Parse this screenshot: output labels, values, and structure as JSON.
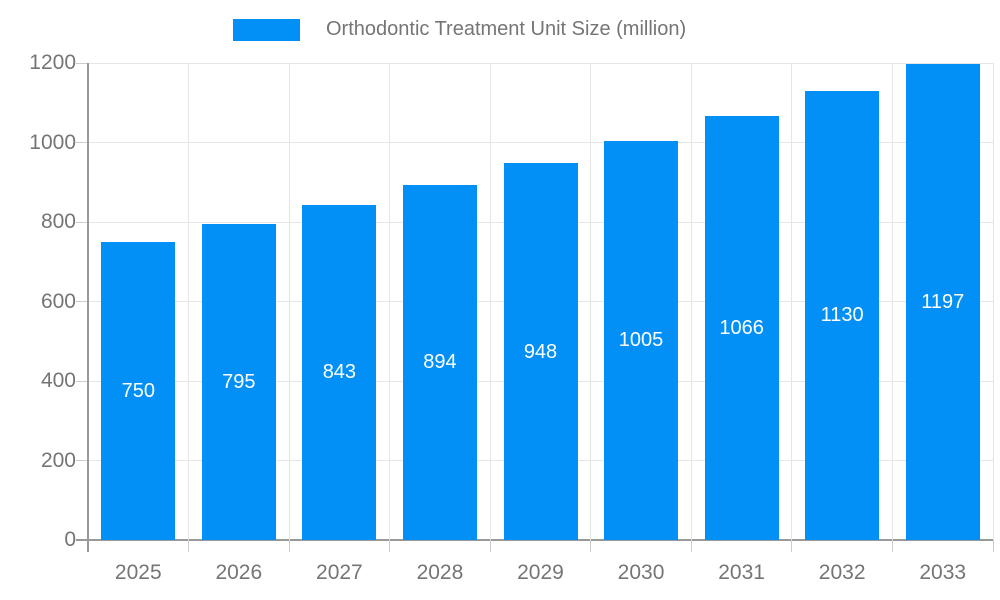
{
  "legend": {
    "label": "Orthodontic Treatment Unit Size (million)"
  },
  "colors": {
    "bar": "#0290f7",
    "axis_text": "#757575",
    "grid": "#e6e6e6",
    "axis_line": "#999999",
    "tick": "#cccccc",
    "value_label": "#ffffff",
    "background": "#ffffff"
  },
  "chart_data": {
    "type": "bar",
    "title": "Orthodontic Treatment Unit Size (million)",
    "categories": [
      "2025",
      "2026",
      "2027",
      "2028",
      "2029",
      "2030",
      "2031",
      "2032",
      "2033"
    ],
    "values": [
      750,
      795,
      843,
      894,
      948,
      1005,
      1066,
      1130,
      1197
    ],
    "xlabel": "",
    "ylabel": "",
    "ylim": [
      0,
      1200
    ],
    "y_ticks": [
      0,
      200,
      400,
      600,
      800,
      1000,
      1200
    ],
    "grid": true,
    "legend_position": "top",
    "bar_labels_inside": true
  }
}
